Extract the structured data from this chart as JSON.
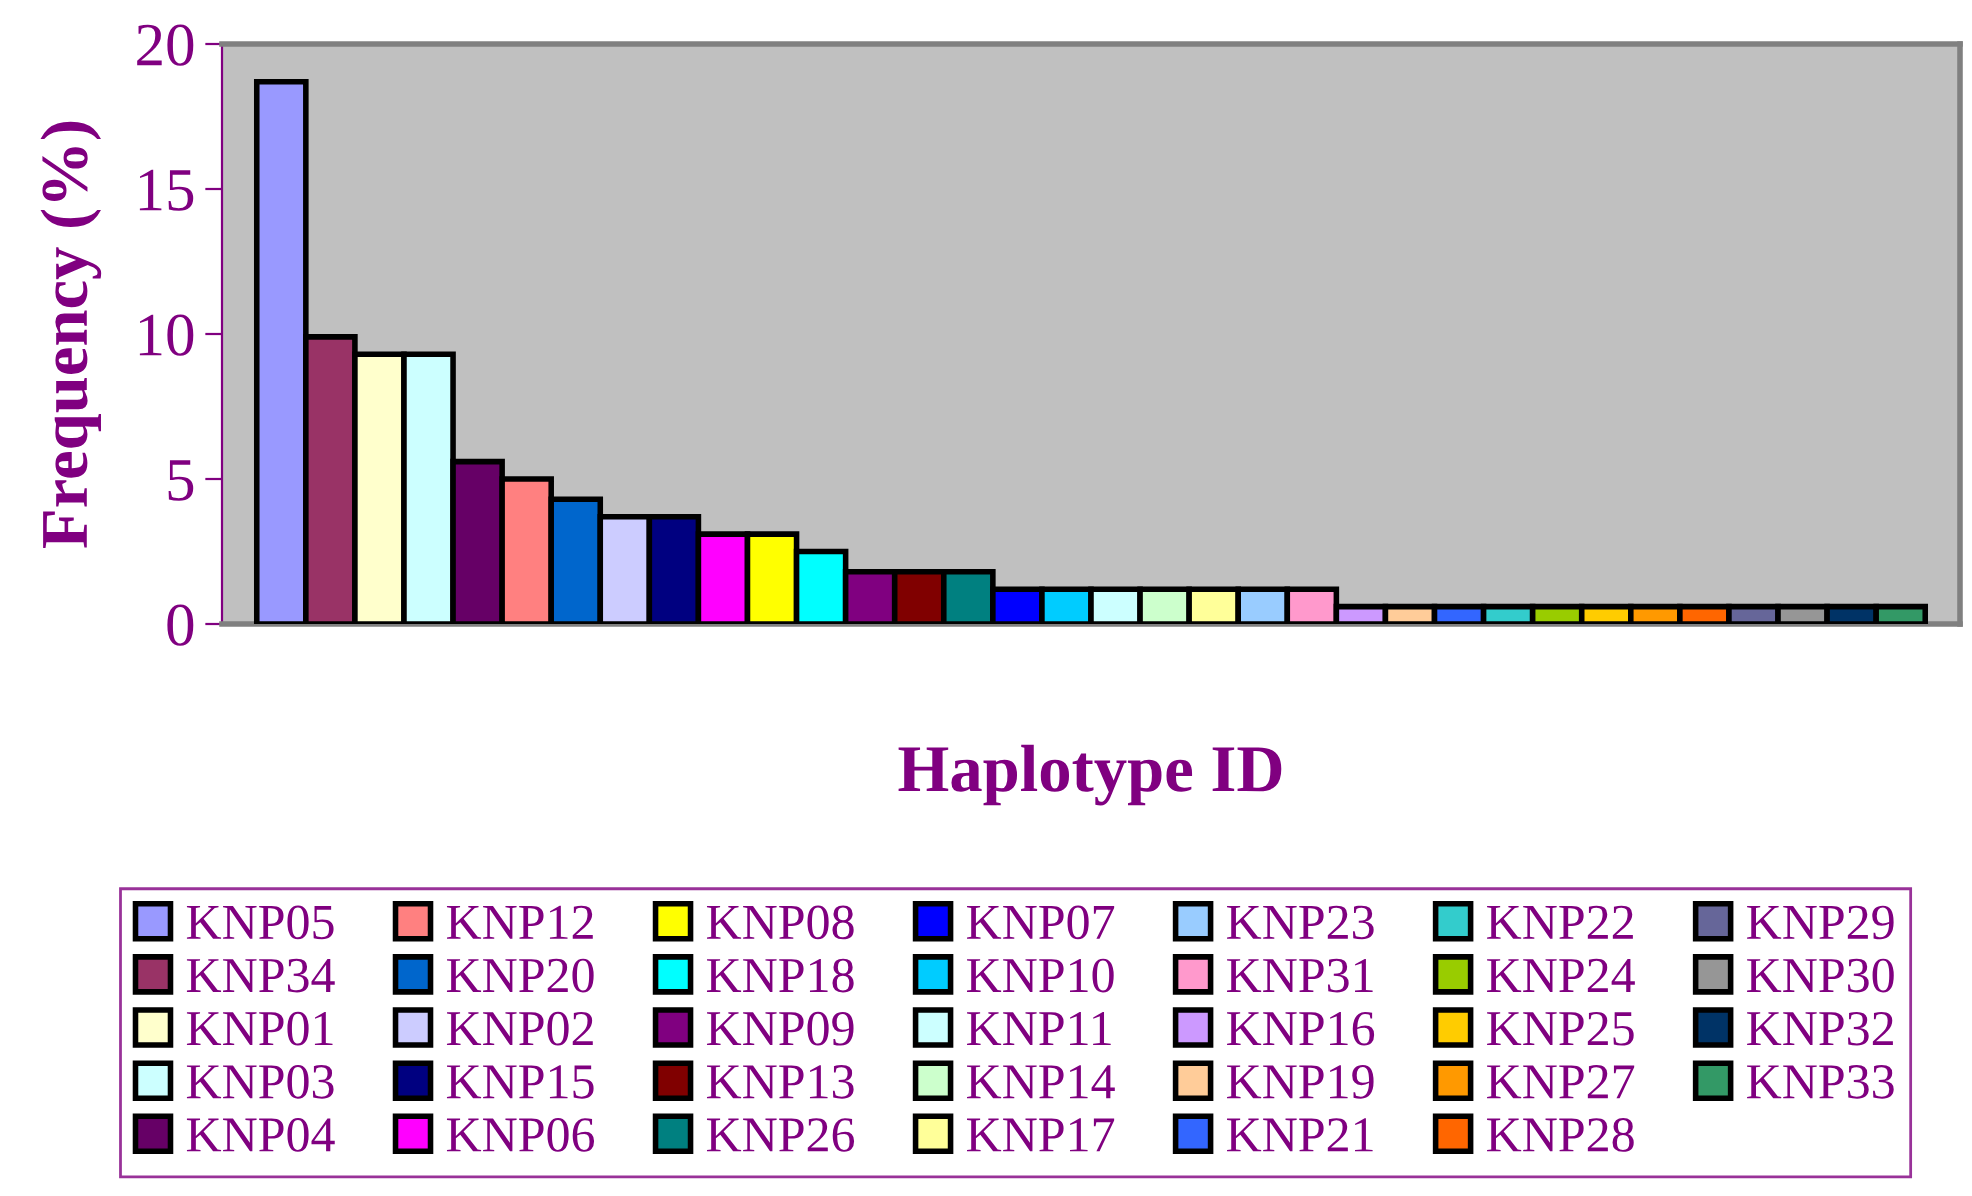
{
  "chart_data": {
    "type": "bar",
    "xlabel": "Haplotype ID",
    "ylabel": "Frequency (%)",
    "categories": [
      null
    ],
    "ylim": [
      0,
      20
    ],
    "yticks": [
      0,
      5,
      10,
      15,
      20
    ],
    "grid": false,
    "legend": "bottom",
    "series": [
      {
        "name": "KNP05",
        "color": "#9999ff",
        "values": [
          18.7
        ]
      },
      {
        "name": "KNP34",
        "color": "#993366",
        "values": [
          9.9
        ]
      },
      {
        "name": "KNP01",
        "color": "#ffffcc",
        "values": [
          9.3
        ]
      },
      {
        "name": "KNP03",
        "color": "#ccffff",
        "values": [
          9.3
        ]
      },
      {
        "name": "KNP04",
        "color": "#660066",
        "values": [
          5.6
        ]
      },
      {
        "name": "KNP12",
        "color": "#ff8080",
        "values": [
          5.0
        ]
      },
      {
        "name": "KNP20",
        "color": "#0066cc",
        "values": [
          4.3
        ]
      },
      {
        "name": "KNP02",
        "color": "#ccccff",
        "values": [
          3.7
        ]
      },
      {
        "name": "KNP15",
        "color": "#000080",
        "values": [
          3.7
        ]
      },
      {
        "name": "KNP06",
        "color": "#ff00ff",
        "values": [
          3.1
        ]
      },
      {
        "name": "KNP08",
        "color": "#ffff00",
        "values": [
          3.1
        ]
      },
      {
        "name": "KNP18",
        "color": "#00ffff",
        "values": [
          2.5
        ]
      },
      {
        "name": "KNP09",
        "color": "#800080",
        "values": [
          1.8
        ]
      },
      {
        "name": "KNP13",
        "color": "#800000",
        "values": [
          1.8
        ]
      },
      {
        "name": "KNP26",
        "color": "#008080",
        "values": [
          1.8
        ]
      },
      {
        "name": "KNP07",
        "color": "#0000ff",
        "values": [
          1.2
        ]
      },
      {
        "name": "KNP10",
        "color": "#00ccff",
        "values": [
          1.2
        ]
      },
      {
        "name": "KNP11",
        "color": "#ccffff",
        "values": [
          1.2
        ]
      },
      {
        "name": "KNP14",
        "color": "#ccffcc",
        "values": [
          1.2
        ]
      },
      {
        "name": "KNP17",
        "color": "#ffff99",
        "values": [
          1.2
        ]
      },
      {
        "name": "KNP23",
        "color": "#99ccff",
        "values": [
          1.2
        ]
      },
      {
        "name": "KNP31",
        "color": "#ff99cc",
        "values": [
          1.2
        ]
      },
      {
        "name": "KNP16",
        "color": "#cc99ff",
        "values": [
          0.6
        ]
      },
      {
        "name": "KNP19",
        "color": "#ffcc99",
        "values": [
          0.6
        ]
      },
      {
        "name": "KNP21",
        "color": "#3366ff",
        "values": [
          0.6
        ]
      },
      {
        "name": "KNP22",
        "color": "#33cccc",
        "values": [
          0.6
        ]
      },
      {
        "name": "KNP24",
        "color": "#99cc00",
        "values": [
          0.6
        ]
      },
      {
        "name": "KNP25",
        "color": "#ffcc00",
        "values": [
          0.6
        ]
      },
      {
        "name": "KNP27",
        "color": "#ff9900",
        "values": [
          0.6
        ]
      },
      {
        "name": "KNP28",
        "color": "#ff6600",
        "values": [
          0.6
        ]
      },
      {
        "name": "KNP29",
        "color": "#666699",
        "values": [
          0.6
        ]
      },
      {
        "name": "KNP30",
        "color": "#969696",
        "values": [
          0.6
        ]
      },
      {
        "name": "KNP32",
        "color": "#003366",
        "values": [
          0.6
        ]
      },
      {
        "name": "KNP33",
        "color": "#339966",
        "values": [
          0.6
        ]
      }
    ]
  }
}
